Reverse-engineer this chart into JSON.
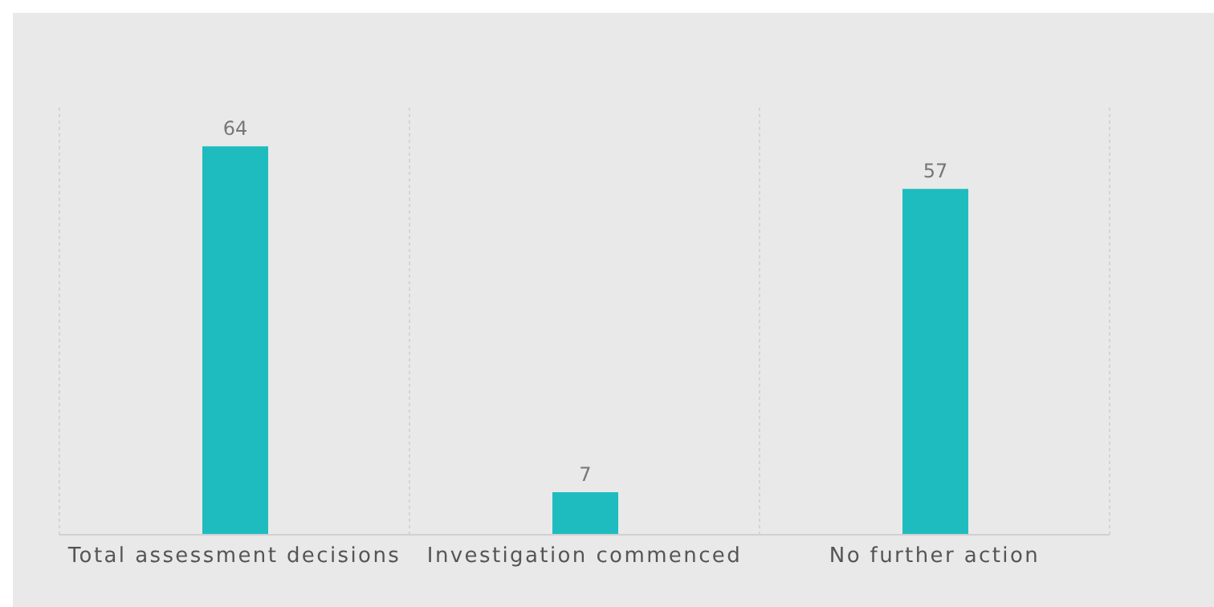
{
  "chart_data": {
    "type": "bar",
    "categories": [
      "Total assessment decisions",
      "Investigation commenced",
      "No further action"
    ],
    "values": [
      64,
      7,
      57
    ],
    "color": "#1fbcbf",
    "data_labels": true,
    "grid": "x"
  }
}
